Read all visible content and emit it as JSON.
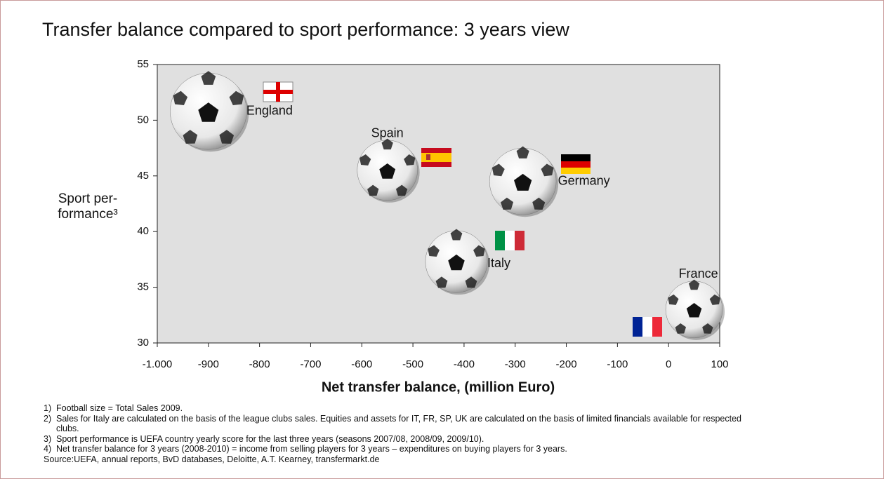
{
  "chart_data": {
    "type": "scatter",
    "title": "Transfer balance compared to sport performance: 3 years view",
    "x_label": "Net transfer balance,  (million Euro)",
    "y_label": [
      "Sport per-",
      "formance³"
    ],
    "categories": [
      "England",
      "Spain",
      "Germany",
      "Italy",
      "France"
    ],
    "x": [
      -900,
      -550,
      -285,
      -415,
      50
    ],
    "y": [
      50.8,
      45.5,
      44.5,
      37.3,
      33
    ],
    "size": [
      2.9,
      1.8,
      2.2,
      1.9,
      1.6
    ],
    "xlim": [
      -1000,
      100
    ],
    "xticks": [
      {
        "value": -1000,
        "label": "-1.000"
      },
      -900,
      -800,
      -700,
      -600,
      -500,
      -400,
      -300,
      -200,
      -100,
      0,
      100
    ],
    "ylim": [
      30,
      55
    ],
    "yticks": [
      30,
      35,
      40,
      45,
      50,
      55
    ],
    "grid": false,
    "plot_background": "#e0e0e0"
  },
  "footnotes": [
    [
      "1)",
      "Football size = Total Sales 2009."
    ],
    [
      "2)",
      "Sales for Italy are calculated on the basis of the league clubs sales. Equities  and assets for IT, FR, SP, UK are calculated on the basis of limited financials available for respected clubs."
    ],
    [
      "3)",
      "Sport performance is UEFA country yearly score for the last three years (seasons 2007/08, 2008/09, 2009/10)."
    ],
    [
      "4)",
      "Net transfer balance for 3 years (2008-2010) = income from selling players for 3 years – expenditures on buying players for 3 years."
    ]
  ],
  "source": "Source:UEFA, annual reports, BvD databases, Deloitte, A.T. Kearney, transfermarkt.de"
}
